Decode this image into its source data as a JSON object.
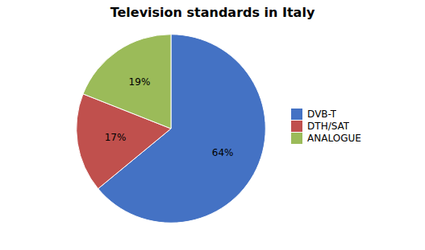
{
  "chart_data": {
    "type": "pie",
    "title": "Television standards in Italy",
    "categories": [
      "DVB-T",
      "DTH/SAT",
      "ANALOGUE"
    ],
    "values": [
      64,
      17,
      19
    ],
    "value_labels": [
      "64%",
      "17%",
      "19%"
    ],
    "colors": [
      "#4472C4",
      "#C0504D",
      "#9BBB59"
    ],
    "data_labels": true,
    "legend": "right"
  }
}
